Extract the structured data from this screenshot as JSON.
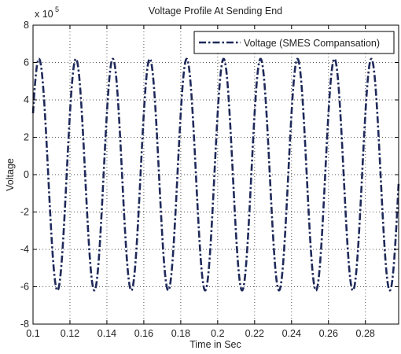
{
  "chart_data": {
    "type": "line",
    "title": "Voltage Profile At Sending End",
    "xlabel": "Time in Sec",
    "ylabel": "Voltage",
    "y_exponent_label": "x 10",
    "y_exponent_power": "5",
    "xlim": [
      0.1,
      0.298
    ],
    "ylim": [
      -8,
      8
    ],
    "x_ticks": [
      0.1,
      0.12,
      0.14,
      0.16,
      0.18,
      0.2,
      0.22,
      0.24,
      0.26,
      0.28
    ],
    "x_tick_labels": [
      "0.1",
      "0.12",
      "0.14",
      "0.16",
      "0.18",
      "0.2",
      "0.22",
      "0.24",
      "0.26",
      "0.28"
    ],
    "y_ticks": [
      -8,
      -6,
      -4,
      -2,
      0,
      2,
      4,
      6,
      8
    ],
    "y_tick_labels": [
      "-8",
      "-6",
      "-4",
      "-2",
      "0",
      "2",
      "4",
      "6",
      "8"
    ],
    "grid": true,
    "grid_style": "dotted",
    "legend_position": "top-right",
    "series": [
      {
        "name": "Voltage (SMES Compansation)",
        "color": "#1f2a5a",
        "line_style": "dash-dot",
        "waveform": "sine",
        "amplitude": 6.2,
        "frequency_hz": 50,
        "phase_deg": 32,
        "x_start": 0.1,
        "x_end": 0.298
      }
    ]
  }
}
